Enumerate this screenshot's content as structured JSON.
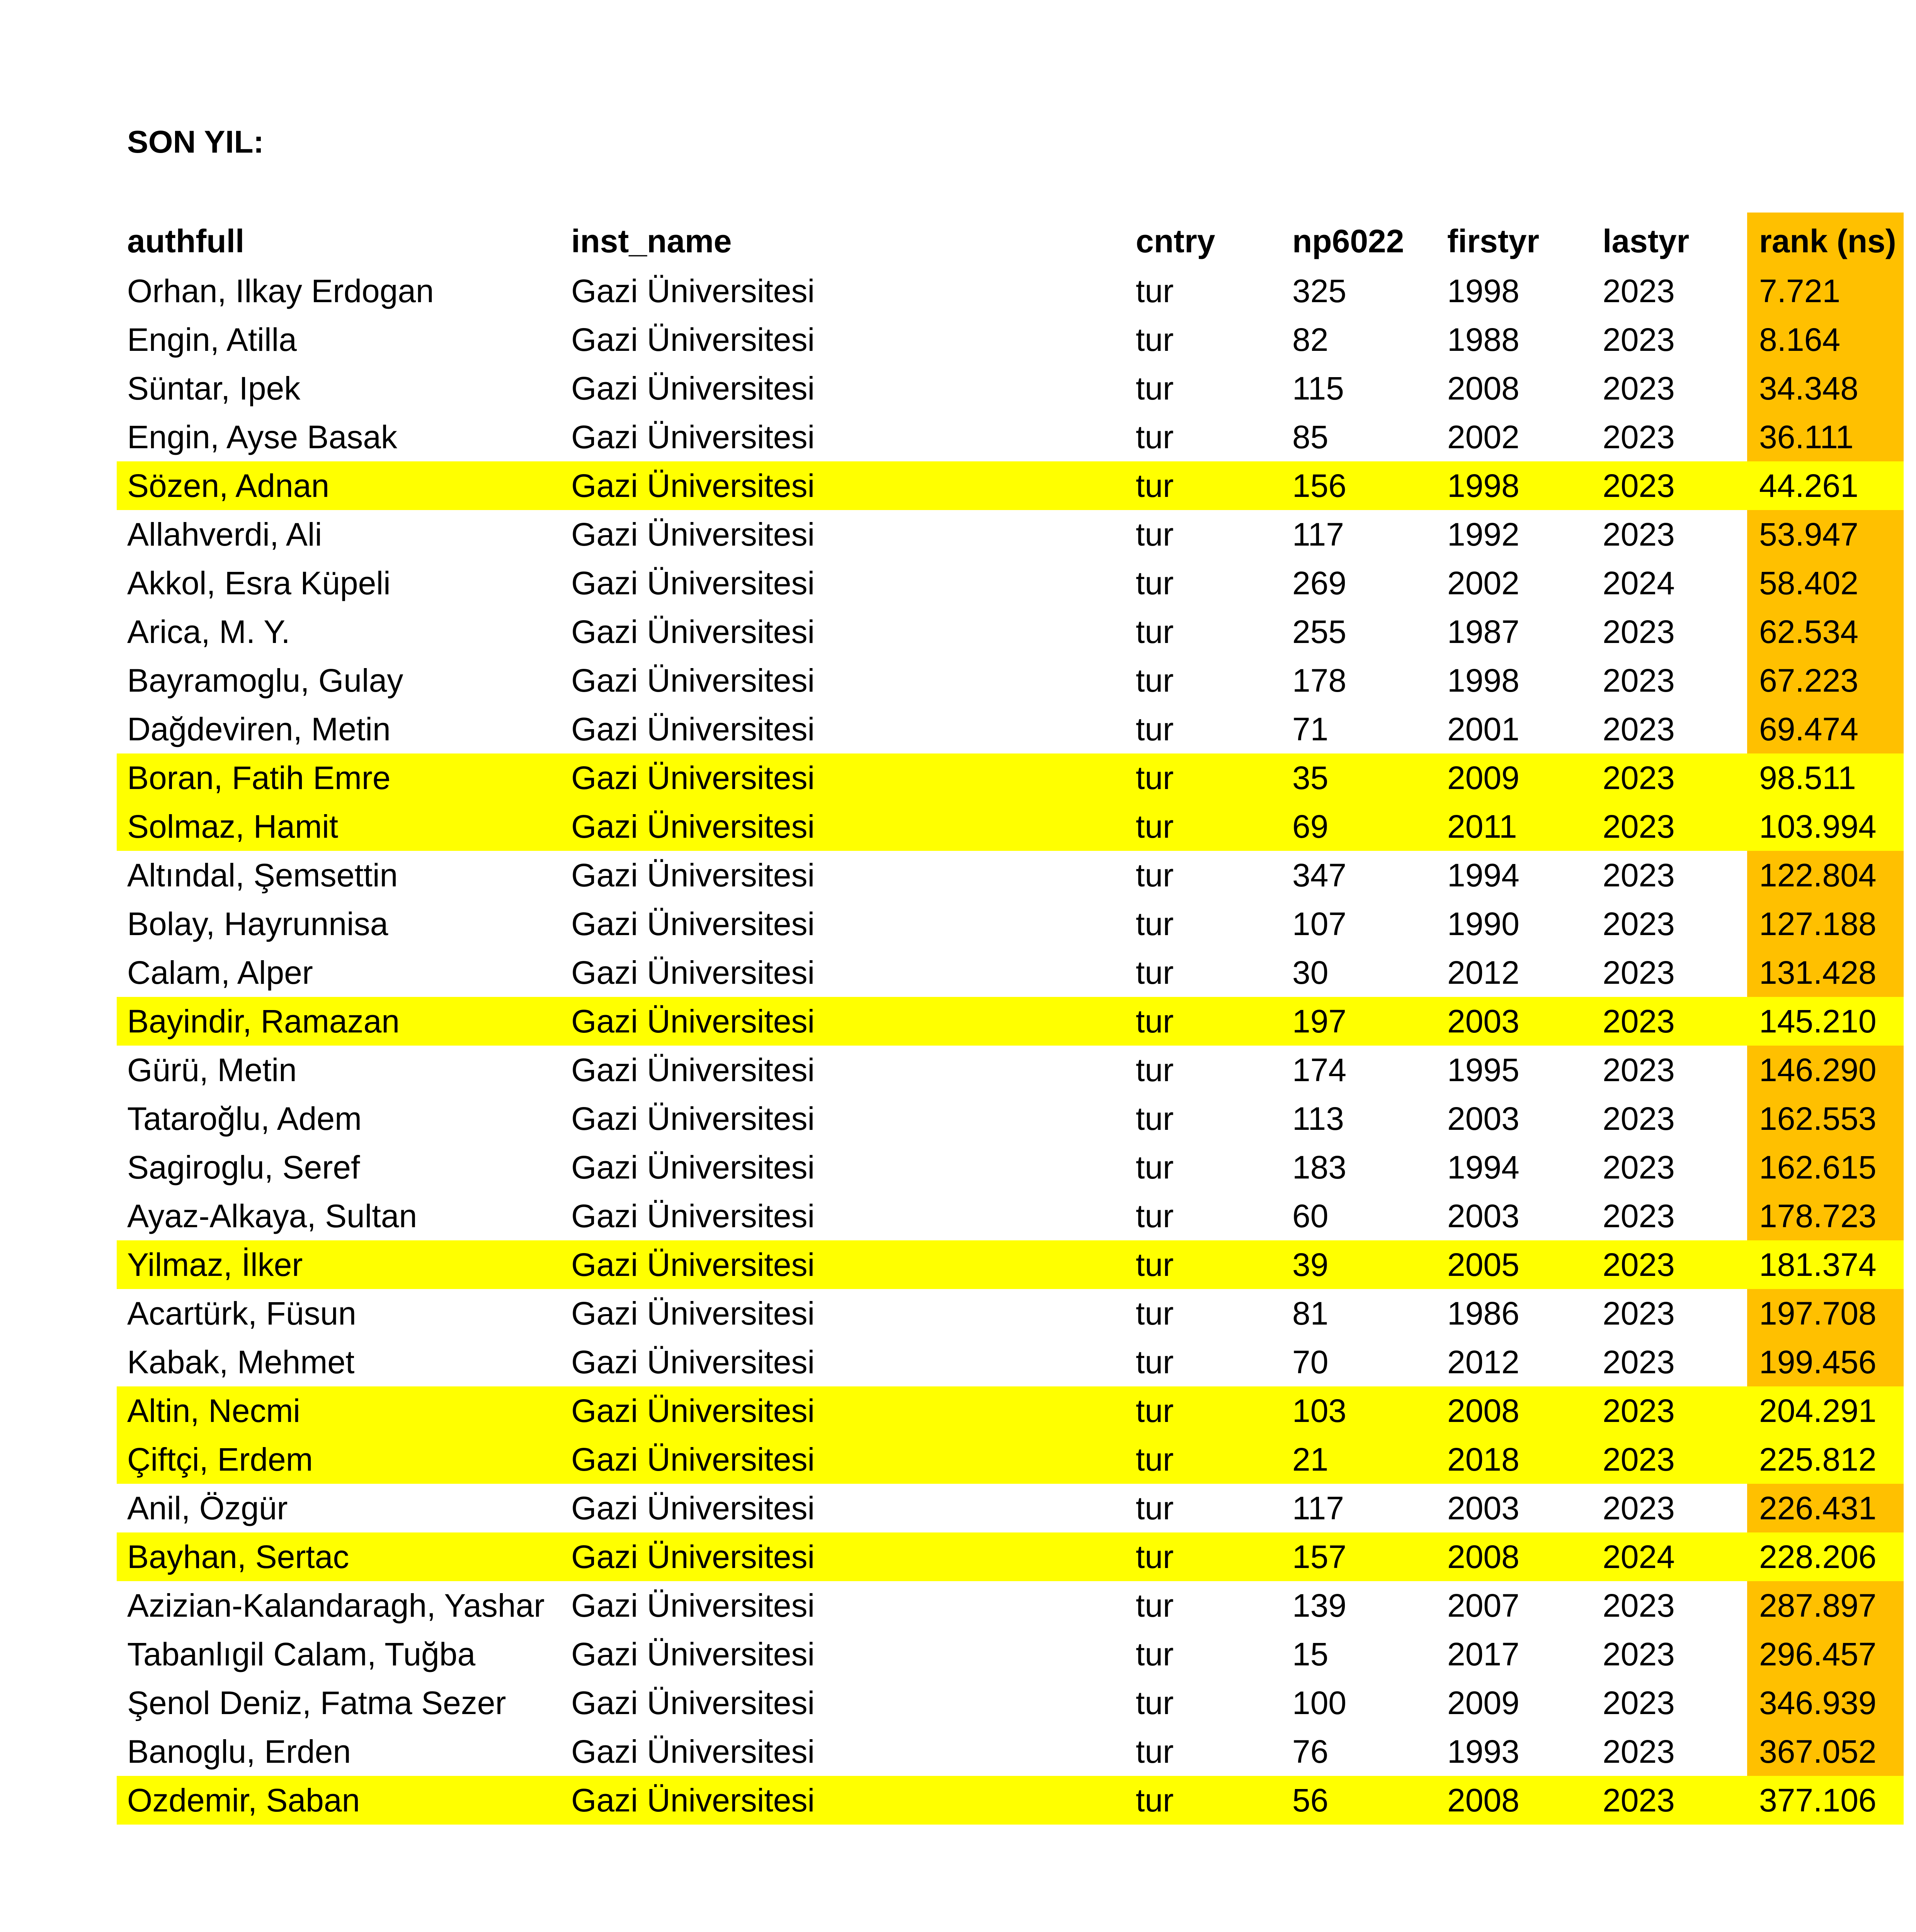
{
  "title": "SON YIL:",
  "colors": {
    "highlight_row": "#FFFF00",
    "rank_column": "#FFC000"
  },
  "table": {
    "columns": [
      "authfull",
      "inst_name",
      "cntry",
      "np6022",
      "firstyr",
      "lastyr",
      "rank (ns)"
    ],
    "rows": [
      {
        "cells": [
          "Orhan, Ilkay Erdogan",
          "Gazi Üniversitesi",
          "tur",
          "325",
          "1998",
          "2023",
          "7.721"
        ],
        "highlight": false
      },
      {
        "cells": [
          "Engin, Atilla",
          "Gazi Üniversitesi",
          "tur",
          "82",
          "1988",
          "2023",
          "8.164"
        ],
        "highlight": false
      },
      {
        "cells": [
          "Süntar, Ipek",
          "Gazi Üniversitesi",
          "tur",
          "115",
          "2008",
          "2023",
          "34.348"
        ],
        "highlight": false
      },
      {
        "cells": [
          "Engin, Ayse Basak",
          "Gazi Üniversitesi",
          "tur",
          "85",
          "2002",
          "2023",
          "36.111"
        ],
        "highlight": false
      },
      {
        "cells": [
          "Sözen, Adnan",
          "Gazi Üniversitesi",
          "tur",
          "156",
          "1998",
          "2023",
          "44.261"
        ],
        "highlight": true
      },
      {
        "cells": [
          "Allahverdi, Ali",
          "Gazi Üniversitesi",
          "tur",
          "117",
          "1992",
          "2023",
          "53.947"
        ],
        "highlight": false
      },
      {
        "cells": [
          "Akkol, Esra Küpeli",
          "Gazi Üniversitesi",
          "tur",
          "269",
          "2002",
          "2024",
          "58.402"
        ],
        "highlight": false
      },
      {
        "cells": [
          "Arica, M. Y.",
          "Gazi Üniversitesi",
          "tur",
          "255",
          "1987",
          "2023",
          "62.534"
        ],
        "highlight": false
      },
      {
        "cells": [
          "Bayramoglu, Gulay",
          "Gazi Üniversitesi",
          "tur",
          "178",
          "1998",
          "2023",
          "67.223"
        ],
        "highlight": false
      },
      {
        "cells": [
          "Dağdeviren, Metin",
          "Gazi Üniversitesi",
          "tur",
          "71",
          "2001",
          "2023",
          "69.474"
        ],
        "highlight": false
      },
      {
        "cells": [
          "Boran, Fatih Emre",
          "Gazi Üniversitesi",
          "tur",
          "35",
          "2009",
          "2023",
          "98.511"
        ],
        "highlight": true
      },
      {
        "cells": [
          "Solmaz, Hamit",
          "Gazi Üniversitesi",
          "tur",
          "69",
          "2011",
          "2023",
          "103.994"
        ],
        "highlight": true
      },
      {
        "cells": [
          "Altındal, Şemsettin",
          "Gazi Üniversitesi",
          "tur",
          "347",
          "1994",
          "2023",
          "122.804"
        ],
        "highlight": false
      },
      {
        "cells": [
          "Bolay, Hayrunnisa",
          "Gazi Üniversitesi",
          "tur",
          "107",
          "1990",
          "2023",
          "127.188"
        ],
        "highlight": false
      },
      {
        "cells": [
          "Calam, Alper",
          "Gazi Üniversitesi",
          "tur",
          "30",
          "2012",
          "2023",
          "131.428"
        ],
        "highlight": false
      },
      {
        "cells": [
          "Bayindir, Ramazan",
          "Gazi Üniversitesi",
          "tur",
          "197",
          "2003",
          "2023",
          "145.210"
        ],
        "highlight": true
      },
      {
        "cells": [
          "Gürü, Metin",
          "Gazi Üniversitesi",
          "tur",
          "174",
          "1995",
          "2023",
          "146.290"
        ],
        "highlight": false
      },
      {
        "cells": [
          "Tataroğlu, Adem",
          "Gazi Üniversitesi",
          "tur",
          "113",
          "2003",
          "2023",
          "162.553"
        ],
        "highlight": false
      },
      {
        "cells": [
          "Sagiroglu, Seref",
          "Gazi Üniversitesi",
          "tur",
          "183",
          "1994",
          "2023",
          "162.615"
        ],
        "highlight": false
      },
      {
        "cells": [
          "Ayaz-Alkaya, Sultan",
          "Gazi Üniversitesi",
          "tur",
          "60",
          "2003",
          "2023",
          "178.723"
        ],
        "highlight": false
      },
      {
        "cells": [
          "Yilmaz, İlker",
          "Gazi Üniversitesi",
          "tur",
          "39",
          "2005",
          "2023",
          "181.374"
        ],
        "highlight": true
      },
      {
        "cells": [
          "Acartürk, Füsun",
          "Gazi Üniversitesi",
          "tur",
          "81",
          "1986",
          "2023",
          "197.708"
        ],
        "highlight": false
      },
      {
        "cells": [
          "Kabak, Mehmet",
          "Gazi Üniversitesi",
          "tur",
          "70",
          "2012",
          "2023",
          "199.456"
        ],
        "highlight": false
      },
      {
        "cells": [
          "Altin, Necmi",
          "Gazi Üniversitesi",
          "tur",
          "103",
          "2008",
          "2023",
          "204.291"
        ],
        "highlight": true
      },
      {
        "cells": [
          "Çiftçi, Erdem",
          "Gazi Üniversitesi",
          "tur",
          "21",
          "2018",
          "2023",
          "225.812"
        ],
        "highlight": true
      },
      {
        "cells": [
          "Anil, Özgür",
          "Gazi Üniversitesi",
          "tur",
          "117",
          "2003",
          "2023",
          "226.431"
        ],
        "highlight": false
      },
      {
        "cells": [
          "Bayhan, Sertac",
          "Gazi Üniversitesi",
          "tur",
          "157",
          "2008",
          "2024",
          "228.206"
        ],
        "highlight": true
      },
      {
        "cells": [
          "Azizian-Kalandaragh, Yashar",
          "Gazi Üniversitesi",
          "tur",
          "139",
          "2007",
          "2023",
          "287.897"
        ],
        "highlight": false
      },
      {
        "cells": [
          "Tabanlıgil Calam, Tuğba",
          "Gazi Üniversitesi",
          "tur",
          "15",
          "2017",
          "2023",
          "296.457"
        ],
        "highlight": false
      },
      {
        "cells": [
          "Şenol Deniz, Fatma Sezer",
          "Gazi Üniversitesi",
          "tur",
          "100",
          "2009",
          "2023",
          "346.939"
        ],
        "highlight": false
      },
      {
        "cells": [
          "Banoglu, Erden",
          "Gazi Üniversitesi",
          "tur",
          "76",
          "1993",
          "2023",
          "367.052"
        ],
        "highlight": false
      },
      {
        "cells": [
          "Ozdemir, Saban",
          "Gazi Üniversitesi",
          "tur",
          "56",
          "2008",
          "2023",
          "377.106"
        ],
        "highlight": true
      }
    ]
  }
}
